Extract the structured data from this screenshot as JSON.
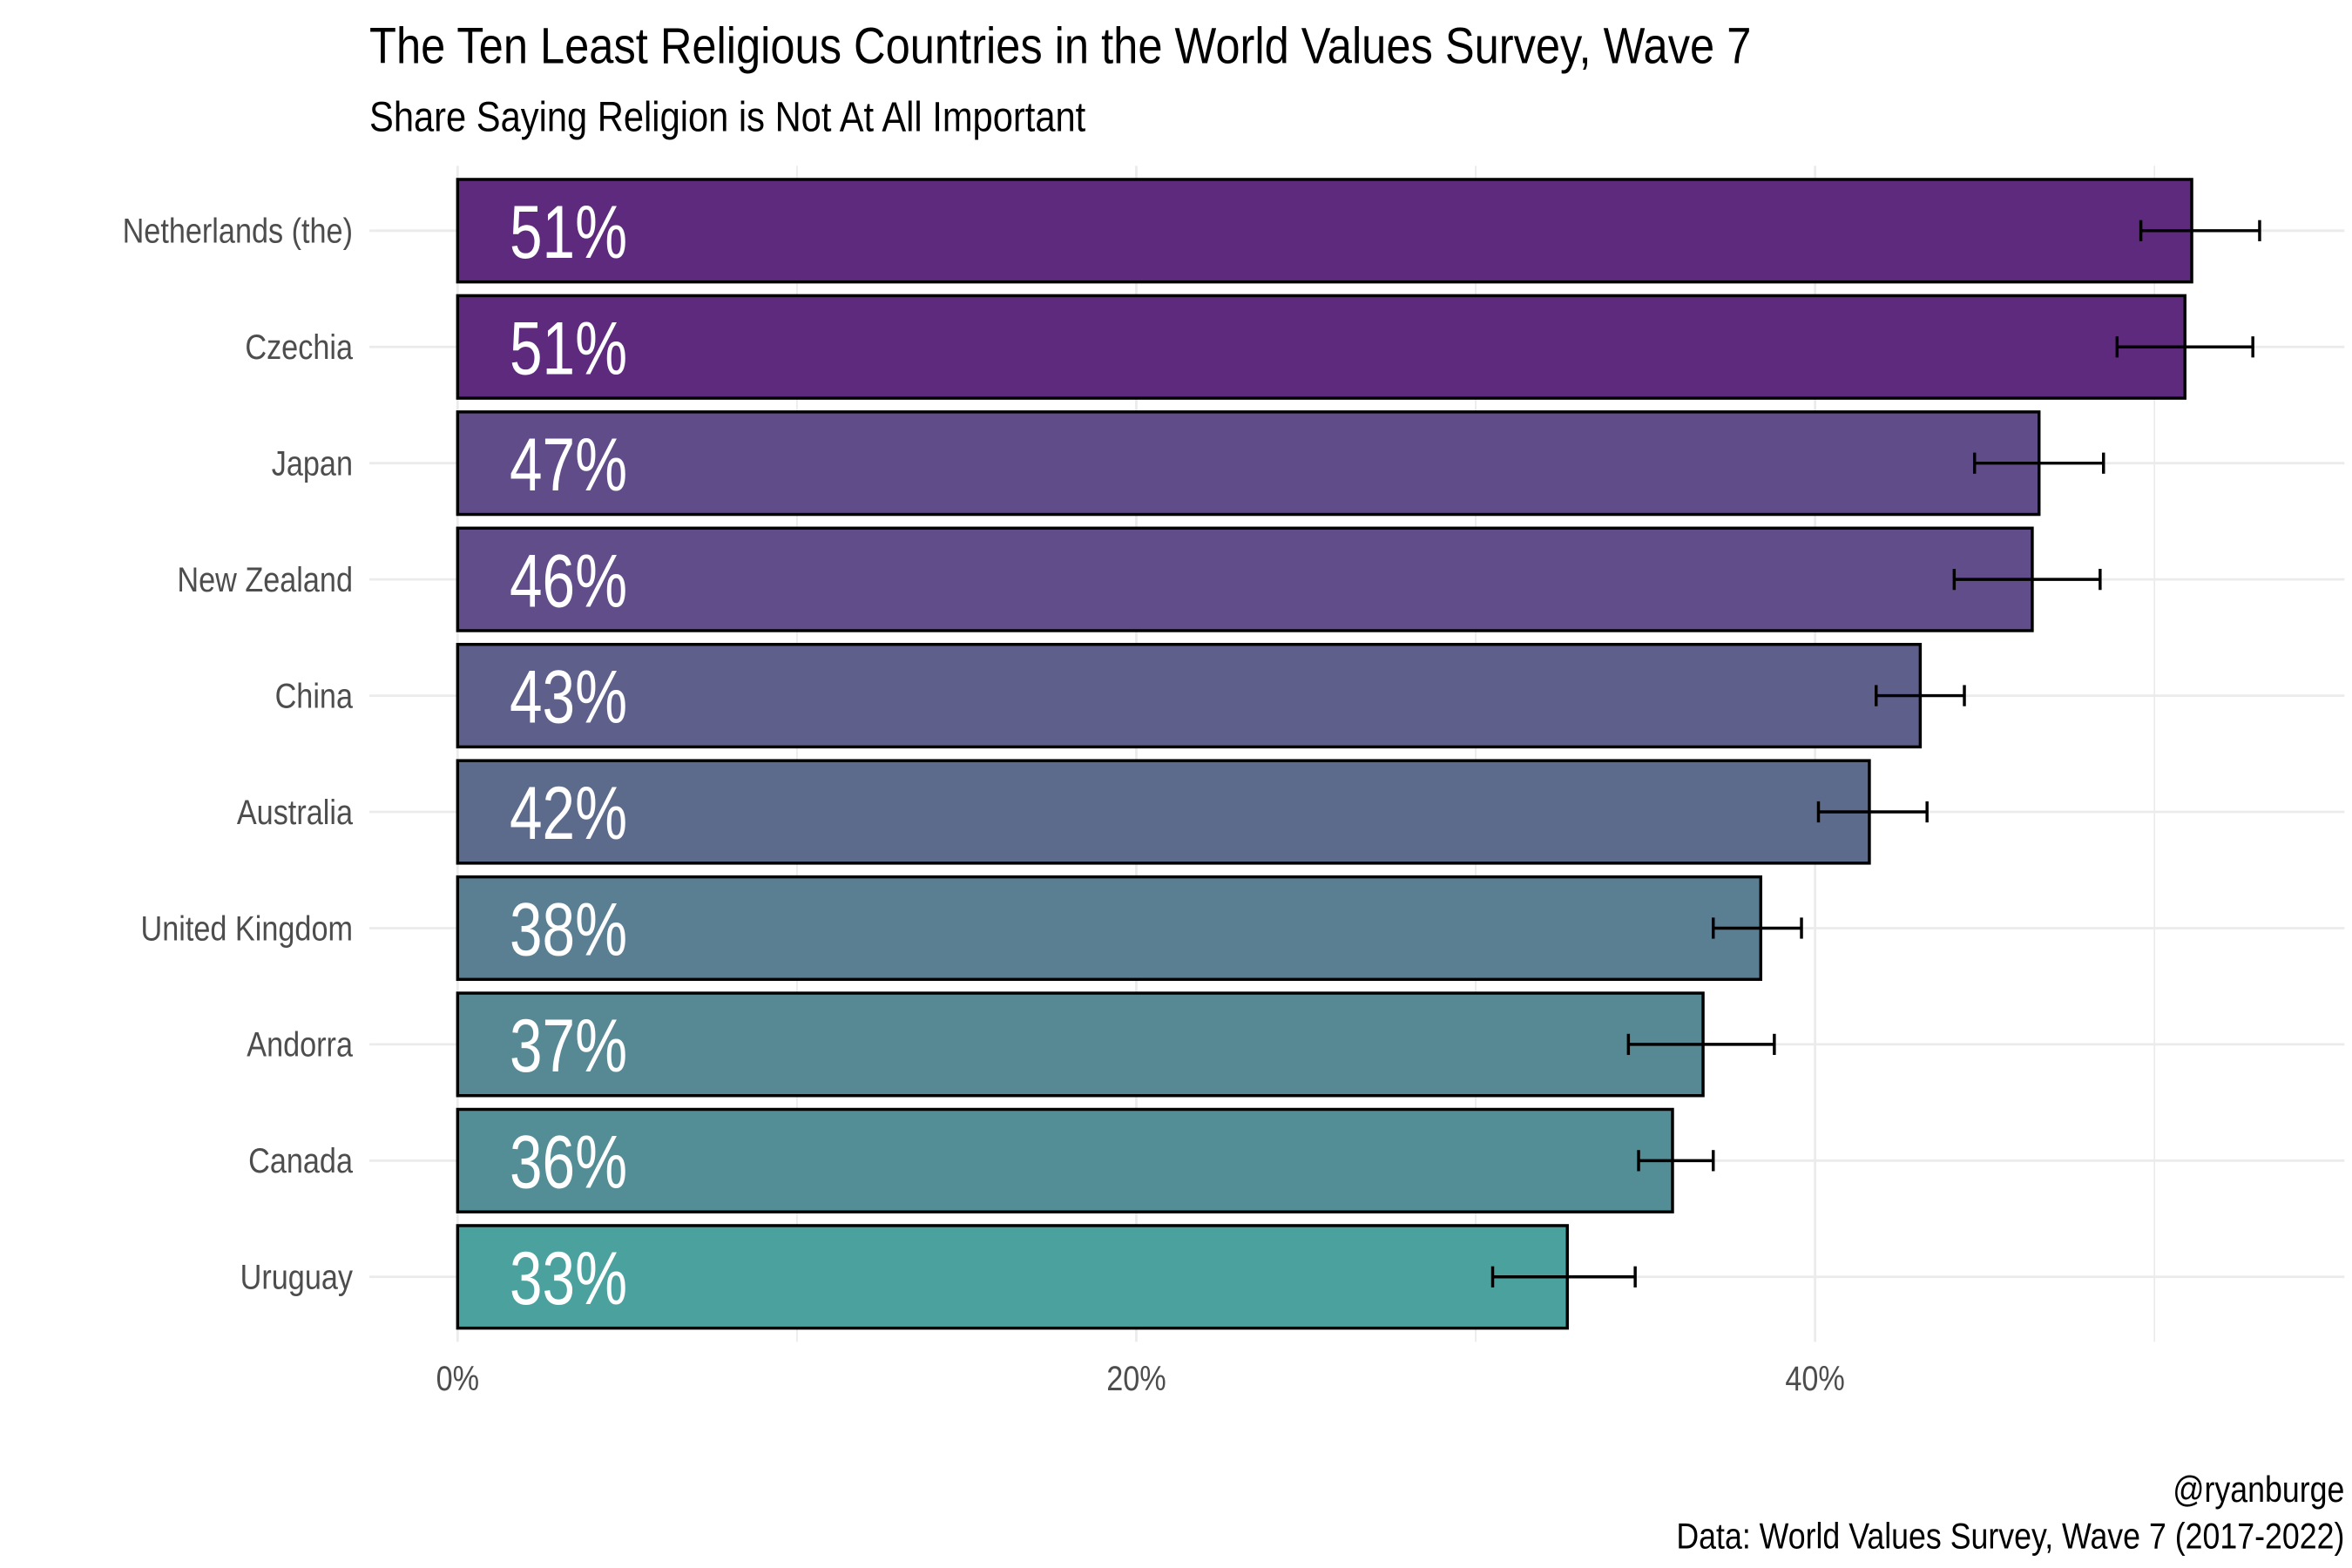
{
  "chart_data": {
    "type": "bar",
    "orientation": "horizontal",
    "title": "The Ten Least Religious Countries in the World Values Survey, Wave 7",
    "subtitle": "Share Saying Religion is Not At All Important",
    "caption_line1": "@ryanburge",
    "caption_line2": "Data: World Values Survey, Wave 7 (2017-2022)",
    "xlabel": "",
    "ylabel": "",
    "xlim": [
      -2.6,
      55.6
    ],
    "x_ticks": [
      0,
      20,
      40
    ],
    "x_tick_labels": [
      "0%",
      "20%",
      "40%"
    ],
    "grid": true,
    "categories": [
      "Netherlands (the)",
      "Czechia",
      "Japan",
      "New Zealand",
      "China",
      "Australia",
      "United Kingdom",
      "Andorra",
      "Canada",
      "Uruguay"
    ],
    "values": [
      51.1,
      50.9,
      46.6,
      46.4,
      43.1,
      41.6,
      38.4,
      36.7,
      35.8,
      32.7
    ],
    "data_labels": [
      "51%",
      "51%",
      "47%",
      "46%",
      "43%",
      "42%",
      "38%",
      "37%",
      "36%",
      "33%"
    ],
    "error_low": [
      49.6,
      48.9,
      44.7,
      44.1,
      41.8,
      40.1,
      37.0,
      34.5,
      34.8,
      30.5
    ],
    "error_high": [
      53.1,
      52.9,
      48.5,
      48.4,
      44.4,
      43.3,
      39.6,
      38.8,
      37.0,
      34.7
    ],
    "colors": [
      "#5e2a7e",
      "#5e2a7e",
      "#604c89",
      "#604d89",
      "#5e5f8b",
      "#5c6a8b",
      "#5a7f93",
      "#568994",
      "#538e96",
      "#4aa19e"
    ]
  }
}
